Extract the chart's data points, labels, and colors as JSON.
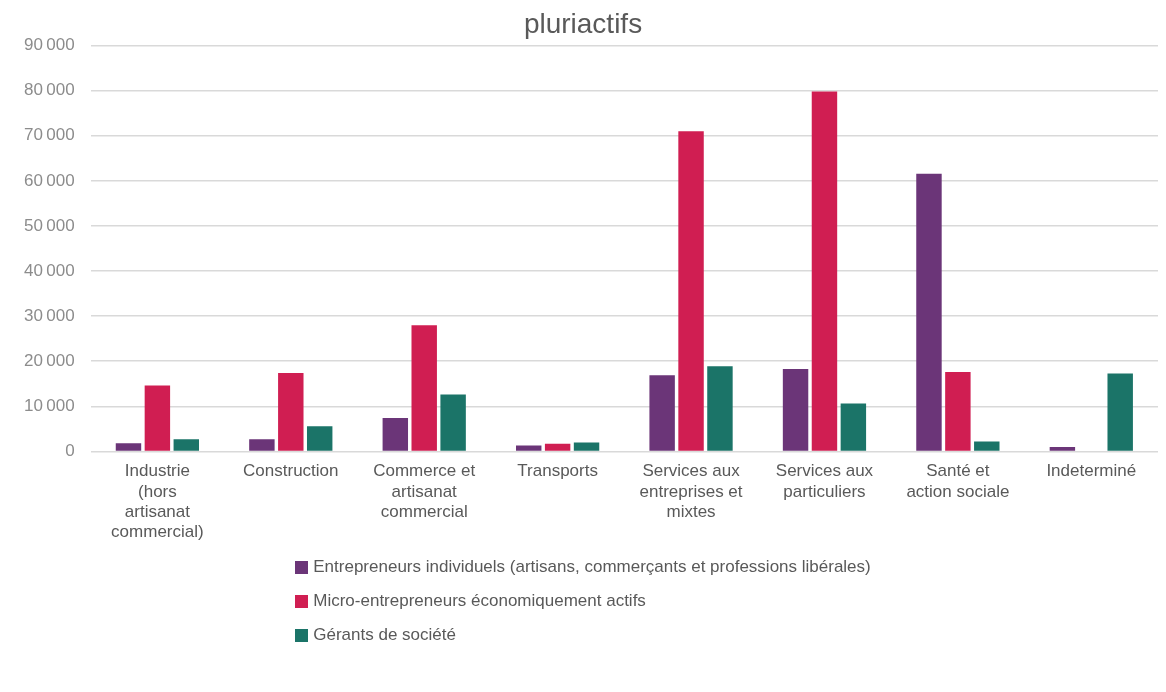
{
  "chart_data": {
    "type": "bar",
    "title": "pluriactifs",
    "categories": [
      "Industrie (hors artisanat commercial)",
      "Construction",
      "Commerce et artisanat commercial",
      "Transports",
      "Services aux entreprises et mixtes",
      "Services aux particuliers",
      "Santé et action sociale",
      "Indeterminé"
    ],
    "series": [
      {
        "name": "Entrepreneurs individuels (artisans, commerçants et professions libérales)",
        "color": "#6b3578",
        "values": [
          1800,
          2700,
          7400,
          1300,
          16900,
          18300,
          61600,
          1000
        ]
      },
      {
        "name": "Micro-entrepreneurs économiquement actifs",
        "color": "#d01e52",
        "values": [
          14600,
          17400,
          28000,
          1700,
          71000,
          79800,
          17600,
          null
        ]
      },
      {
        "name": "Gérants de société",
        "color": "#1b7468",
        "values": [
          2700,
          5600,
          12600,
          2000,
          18900,
          10600,
          2200,
          17300
        ]
      }
    ],
    "ylim": [
      0,
      90000
    ],
    "yticks": [
      0,
      10000,
      20000,
      30000,
      40000,
      50000,
      60000,
      70000,
      80000,
      90000
    ],
    "grid": "y",
    "legend": "bottom"
  }
}
